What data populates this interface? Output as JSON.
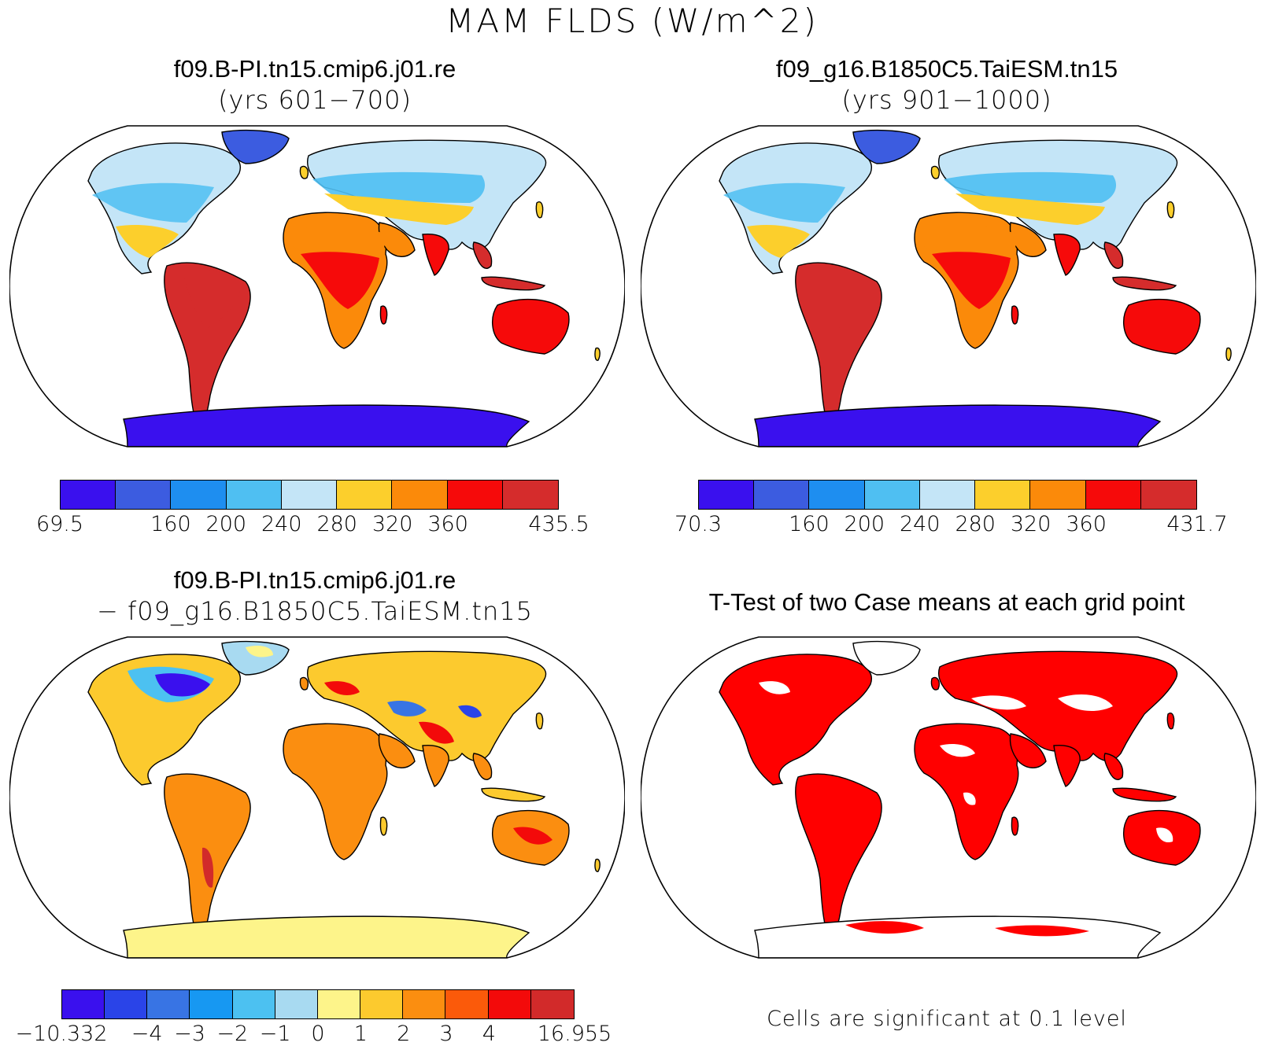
{
  "title": "MAM FLDS (W/m^2)",
  "panels": [
    {
      "line1": "f09.B-PI.tn15.cmip6.j01.re",
      "line2": "(yrs 601−700)"
    },
    {
      "line1": "f09_g16.B1850C5.TaiESM.tn15",
      "line2": "(yrs 901−1000)"
    },
    {
      "line1": "f09.B-PI.tn15.cmip6.j01.re",
      "line2": "− f09_g16.B1850C5.TaiESM.tn15"
    },
    {
      "line1": "T-Test of two Case means at each grid point",
      "line2": ""
    }
  ],
  "colorbars": [
    {
      "colors": [
        "#3a10ee",
        "#3c5ce0",
        "#1e8ef0",
        "#4fbff2",
        "#c4e5f7",
        "#fccf2c",
        "#fb8a0a",
        "#f60a0a",
        "#d52c2c"
      ],
      "labels": [
        "69.5",
        "160",
        "200",
        "240",
        "280",
        "320",
        "360",
        "435.5"
      ],
      "label_boundaries": [
        0,
        2,
        3,
        4,
        5,
        6,
        7,
        9
      ]
    },
    {
      "colors": [
        "#3a10ee",
        "#3c5ce0",
        "#1e8ef0",
        "#4fbff2",
        "#c4e5f7",
        "#fccf2c",
        "#fb8a0a",
        "#f60a0a",
        "#d52c2c"
      ],
      "labels": [
        "70.3",
        "160",
        "200",
        "240",
        "280",
        "320",
        "360",
        "431.7"
      ],
      "label_boundaries": [
        0,
        2,
        3,
        4,
        5,
        6,
        7,
        9
      ]
    },
    {
      "colors": [
        "#3a10ee",
        "#2a44e8",
        "#3874e4",
        "#1798f2",
        "#4cc1f1",
        "#a8daf1",
        "#fdf48a",
        "#fcca2e",
        "#fb8e10",
        "#fb5a0a",
        "#f30a0a",
        "#d22a2a"
      ],
      "labels": [
        "−10.332",
        "−4",
        "−3",
        "−2",
        "−1",
        "0",
        "1",
        "2",
        "3",
        "4",
        "16.955"
      ],
      "label_boundaries": [
        0,
        2,
        3,
        4,
        5,
        6,
        7,
        8,
        9,
        10,
        12
      ]
    }
  ],
  "footnote": "Cells are significant at 0.1 level",
  "map_colors": {
    "antarctica": "#3a10ee",
    "high_lat": "#3c5ce0",
    "cold": "#4fbff2",
    "cool": "#c4e5f7",
    "mild": "#fccf2c",
    "warm": "#fb8a0a",
    "hot": "#f60a0a",
    "hottest": "#d52c2c",
    "significant": "#ff0000"
  }
}
